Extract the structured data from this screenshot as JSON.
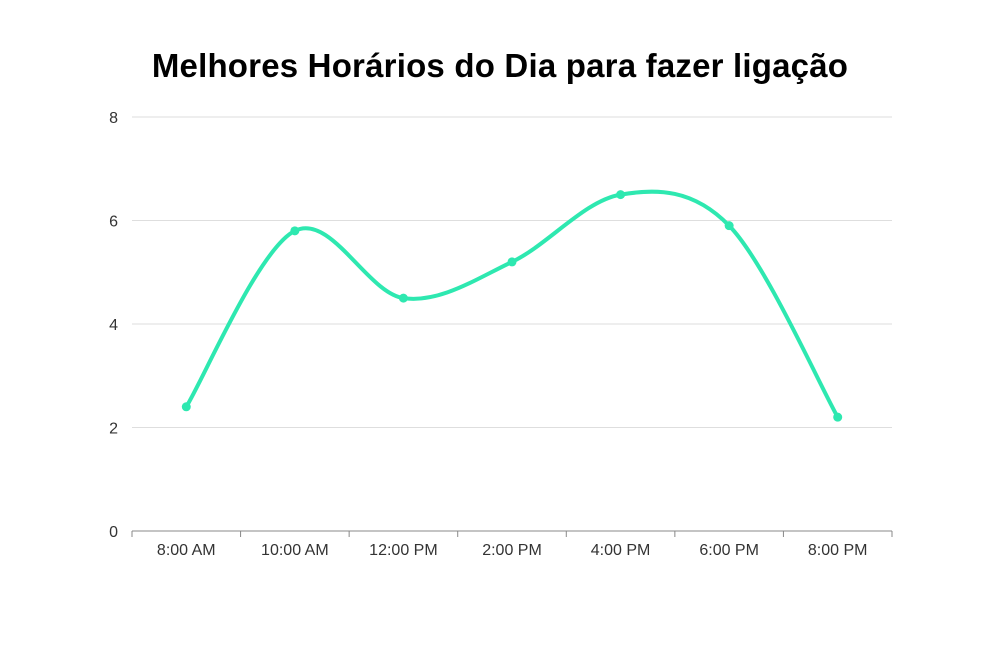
{
  "chart_data": {
    "type": "line",
    "title": "Melhores Horários do Dia para fazer ligação",
    "xlabel": "",
    "ylabel": "",
    "categories": [
      "8:00 AM",
      "10:00 AM",
      "12:00 PM",
      "2:00 PM",
      "4:00 PM",
      "6:00 PM",
      "8:00 PM"
    ],
    "series": [
      {
        "values": [
          2.4,
          5.8,
          4.5,
          5.2,
          6.5,
          5.9,
          2.2
        ]
      }
    ],
    "ylim": [
      0,
      8
    ],
    "yticks": [
      "0",
      "2",
      "4",
      "6",
      "8"
    ],
    "grid": true,
    "legend": "none",
    "line_color": "#2ee8b0",
    "grid_color": "#dedede",
    "axis_color": "#888888",
    "smooth": true
  }
}
